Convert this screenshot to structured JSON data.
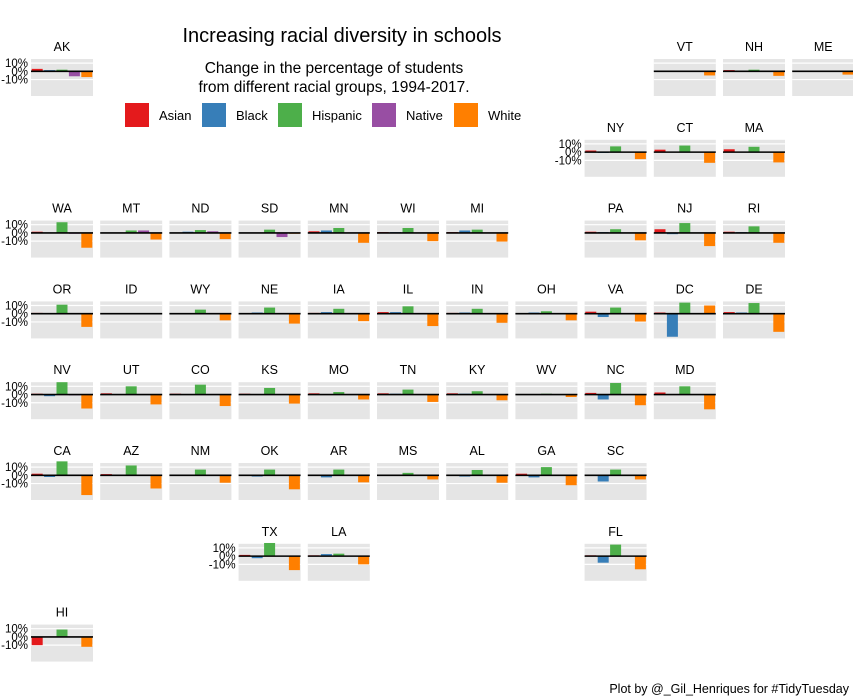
{
  "chart_data": {
    "type": "bar",
    "layout": "small-multiples tile grid map",
    "title": "Increasing racial diversity in schools",
    "subtitle_lines": [
      "Change in the percentage of students",
      "from different racial groups, 1994-2017."
    ],
    "caption": "Plot by @_Gil_Henriques for #TidyTuesday",
    "unit": "%",
    "ylim": [
      -30,
      15
    ],
    "y_ticks": [
      10,
      0,
      -10
    ],
    "y_tick_labels": [
      "10%",
      "0%",
      "-10%"
    ],
    "zero_line": true,
    "grid": true,
    "categories": [
      "Asian",
      "Black",
      "Hispanic",
      "Native",
      "White"
    ],
    "legend_position": "top-center",
    "colors": {
      "Asian": "#e41a1c",
      "Black": "#377eb8",
      "Hispanic": "#4daf4a",
      "Native": "#984ea3",
      "White": "#ff7f00",
      "panel": "#e5e5e5",
      "gridline": "#ffffff",
      "zero": "#000000"
    },
    "panels": [
      {
        "state": "AK",
        "row": 0,
        "col": 0,
        "values": [
          3,
          1.5,
          2,
          -6,
          -7
        ]
      },
      {
        "state": "VT",
        "row": 0,
        "col": 9,
        "values": [
          0.5,
          0.5,
          1,
          0,
          -5
        ]
      },
      {
        "state": "NH",
        "row": 0,
        "col": 10,
        "values": [
          1.5,
          0.5,
          2,
          0,
          -5.5
        ]
      },
      {
        "state": "ME",
        "row": 0,
        "col": 11,
        "values": [
          0.5,
          0.5,
          1,
          0,
          -4
        ]
      },
      {
        "state": "NY",
        "row": 1,
        "col": 8,
        "values": [
          2,
          -1,
          7,
          0,
          -8.5
        ]
      },
      {
        "state": "CT",
        "row": 1,
        "col": 9,
        "values": [
          3,
          0.5,
          8,
          0,
          -13
        ]
      },
      {
        "state": "MA",
        "row": 1,
        "col": 10,
        "values": [
          3.5,
          0.5,
          6.5,
          0,
          -12.5
        ]
      },
      {
        "state": "WA",
        "row": 2,
        "col": 0,
        "values": [
          1.5,
          0.5,
          13,
          -1,
          -18
        ]
      },
      {
        "state": "MT",
        "row": 2,
        "col": 1,
        "values": [
          0.5,
          0.5,
          3,
          3,
          -8
        ]
      },
      {
        "state": "ND",
        "row": 2,
        "col": 2,
        "values": [
          0.5,
          1.5,
          3.5,
          2,
          -7.5
        ]
      },
      {
        "state": "SD",
        "row": 2,
        "col": 3,
        "values": [
          0.5,
          0.5,
          4,
          -5,
          -1
        ]
      },
      {
        "state": "MN",
        "row": 2,
        "col": 4,
        "values": [
          2,
          3,
          6,
          0,
          -12
        ]
      },
      {
        "state": "WI",
        "row": 2,
        "col": 5,
        "values": [
          1,
          1,
          6,
          0,
          -10
        ]
      },
      {
        "state": "MI",
        "row": 2,
        "col": 6,
        "values": [
          1,
          3,
          4,
          0,
          -10.5
        ]
      },
      {
        "state": "PA",
        "row": 2,
        "col": 8,
        "values": [
          1.5,
          1,
          4.5,
          0,
          -9
        ]
      },
      {
        "state": "NJ",
        "row": 2,
        "col": 9,
        "values": [
          4.5,
          -1.5,
          12,
          0,
          -16
        ]
      },
      {
        "state": "RI",
        "row": 2,
        "col": 10,
        "values": [
          1.5,
          1,
          8,
          0,
          -12
        ]
      },
      {
        "state": "OR",
        "row": 3,
        "col": 0,
        "values": [
          1,
          0.5,
          11,
          -0.5,
          -16
        ]
      },
      {
        "state": "ID",
        "row": 3,
        "col": 1,
        "values": [
          0,
          0,
          0,
          0,
          0
        ]
      },
      {
        "state": "WY",
        "row": 3,
        "col": 2,
        "values": [
          0.5,
          0.5,
          5,
          0,
          -8
        ]
      },
      {
        "state": "NE",
        "row": 3,
        "col": 3,
        "values": [
          0.5,
          1.5,
          7.5,
          0,
          -12
        ]
      },
      {
        "state": "IA",
        "row": 3,
        "col": 4,
        "values": [
          1,
          2,
          6,
          0,
          -9
        ]
      },
      {
        "state": "IL",
        "row": 3,
        "col": 5,
        "values": [
          2,
          2,
          9,
          0,
          -15
        ]
      },
      {
        "state": "IN",
        "row": 3,
        "col": 6,
        "values": [
          1,
          1.5,
          6,
          0,
          -11
        ]
      },
      {
        "state": "OH",
        "row": 3,
        "col": 7,
        "values": [
          0.5,
          1.5,
          3,
          0,
          -8
        ]
      },
      {
        "state": "VA",
        "row": 3,
        "col": 8,
        "values": [
          2.5,
          -4,
          7.5,
          0,
          -9.5
        ]
      },
      {
        "state": "DC",
        "row": 3,
        "col": 9,
        "values": [
          1.5,
          -28,
          13.5,
          0,
          10
        ]
      },
      {
        "state": "DE",
        "row": 3,
        "col": 10,
        "values": [
          2,
          1.5,
          13,
          0,
          -22
        ]
      },
      {
        "state": "NV",
        "row": 4,
        "col": 0,
        "values": [
          1,
          -2,
          15,
          -1,
          -17
        ]
      },
      {
        "state": "UT",
        "row": 4,
        "col": 1,
        "values": [
          1.5,
          0.5,
          10,
          0,
          -12
        ]
      },
      {
        "state": "CO",
        "row": 4,
        "col": 2,
        "values": [
          1,
          0.5,
          12,
          0,
          -14
        ]
      },
      {
        "state": "KS",
        "row": 4,
        "col": 3,
        "values": [
          1,
          0.5,
          8,
          0,
          -11
        ]
      },
      {
        "state": "MO",
        "row": 4,
        "col": 4,
        "values": [
          1.5,
          0.5,
          3,
          0,
          -6
        ]
      },
      {
        "state": "TN",
        "row": 4,
        "col": 5,
        "values": [
          1.5,
          1,
          6,
          0,
          -9
        ]
      },
      {
        "state": "KY",
        "row": 4,
        "col": 6,
        "values": [
          1.5,
          1,
          4,
          0,
          -7
        ]
      },
      {
        "state": "WV",
        "row": 4,
        "col": 7,
        "values": [
          0.5,
          0.5,
          1,
          0,
          -3
        ]
      },
      {
        "state": "NC",
        "row": 4,
        "col": 8,
        "values": [
          2,
          -6,
          14,
          0,
          -13
        ]
      },
      {
        "state": "MD",
        "row": 4,
        "col": 9,
        "values": [
          2.5,
          0.5,
          10,
          0,
          -18
        ]
      },
      {
        "state": "CA",
        "row": 5,
        "col": 0,
        "values": [
          2,
          -2,
          17,
          -0.5,
          -24
        ]
      },
      {
        "state": "AZ",
        "row": 5,
        "col": 1,
        "values": [
          1.5,
          0.5,
          12,
          0,
          -16
        ]
      },
      {
        "state": "NM",
        "row": 5,
        "col": 2,
        "values": [
          0.5,
          0.5,
          7,
          0,
          -9
        ]
      },
      {
        "state": "OK",
        "row": 5,
        "col": 3,
        "values": [
          1,
          -1.5,
          7,
          0,
          -17
        ]
      },
      {
        "state": "AR",
        "row": 5,
        "col": 4,
        "values": [
          1,
          -2.5,
          7,
          0,
          -8.5
        ]
      },
      {
        "state": "MS",
        "row": 5,
        "col": 5,
        "values": [
          0.5,
          0.5,
          3,
          0,
          -5
        ]
      },
      {
        "state": "AL",
        "row": 5,
        "col": 6,
        "values": [
          0.5,
          -1.5,
          6.5,
          0,
          -9
        ]
      },
      {
        "state": "GA",
        "row": 5,
        "col": 7,
        "values": [
          2,
          -2.5,
          10,
          0,
          -12
        ]
      },
      {
        "state": "SC",
        "row": 5,
        "col": 8,
        "values": [
          1,
          -7.5,
          7,
          0,
          -5
        ]
      },
      {
        "state": "TX",
        "row": 6,
        "col": 3,
        "values": [
          1.5,
          -2.5,
          16,
          0,
          -17
        ]
      },
      {
        "state": "LA",
        "row": 6,
        "col": 4,
        "values": [
          1,
          2.5,
          3,
          0,
          -10
        ]
      },
      {
        "state": "FL",
        "row": 6,
        "col": 8,
        "values": [
          1,
          -8,
          14,
          0,
          -16
        ]
      },
      {
        "state": "HI",
        "row": 7,
        "col": 0,
        "values": [
          -10,
          0.5,
          9,
          0,
          -12
        ]
      }
    ],
    "axis_label_rows": [
      {
        "row": 0,
        "col": 0
      },
      {
        "row": 1,
        "col": 8
      },
      {
        "row": 2,
        "col": 0
      },
      {
        "row": 3,
        "col": 0
      },
      {
        "row": 4,
        "col": 0
      },
      {
        "row": 5,
        "col": 0
      },
      {
        "row": 6,
        "col": 3
      },
      {
        "row": 7,
        "col": 0
      }
    ]
  }
}
